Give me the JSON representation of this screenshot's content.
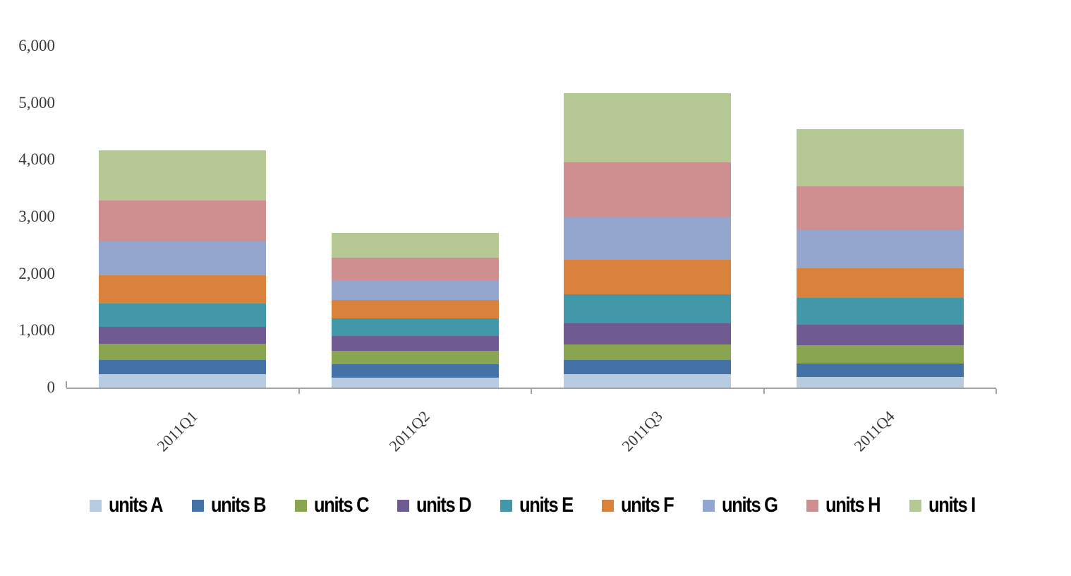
{
  "chart_data": {
    "type": "bar",
    "stacked": true,
    "title": "",
    "xlabel": "",
    "ylabel": "",
    "categories": [
      "2011Q1",
      "2011Q2",
      "2011Q3",
      "2011Q4"
    ],
    "series": [
      {
        "name": "units A",
        "color": "#b7cce1",
        "values": [
          230,
          175,
          235,
          180
        ]
      },
      {
        "name": "units B",
        "color": "#4472a6",
        "values": [
          250,
          235,
          250,
          240
        ]
      },
      {
        "name": "units C",
        "color": "#8aa54f",
        "values": [
          290,
          240,
          270,
          320
        ]
      },
      {
        "name": "units D",
        "color": "#6f5a92",
        "values": [
          300,
          260,
          370,
          365
        ]
      },
      {
        "name": "units E",
        "color": "#4297a9",
        "values": [
          400,
          310,
          515,
          475
        ]
      },
      {
        "name": "units F",
        "color": "#d9823c",
        "values": [
          500,
          320,
          600,
          515
        ]
      },
      {
        "name": "units G",
        "color": "#94a6ce",
        "values": [
          600,
          345,
          765,
          670
        ]
      },
      {
        "name": "units H",
        "color": "#cd8f90",
        "values": [
          710,
          395,
          950,
          765
        ]
      },
      {
        "name": "units I",
        "color": "#b6c894",
        "values": [
          880,
          435,
          1220,
          1005
        ]
      }
    ],
    "y_axis": {
      "tick_labels": [
        "0",
        "1,000",
        "2,000",
        "3,000",
        "4,000",
        "5,000",
        "6,000"
      ],
      "tick_values": [
        0,
        1000,
        2000,
        3000,
        4000,
        5000,
        6000
      ],
      "min": 0,
      "max": 6000,
      "gridlines": false
    },
    "legend_position": "bottom",
    "axis_color": "#a3a3a3",
    "text_color": "#3a3a3a"
  }
}
